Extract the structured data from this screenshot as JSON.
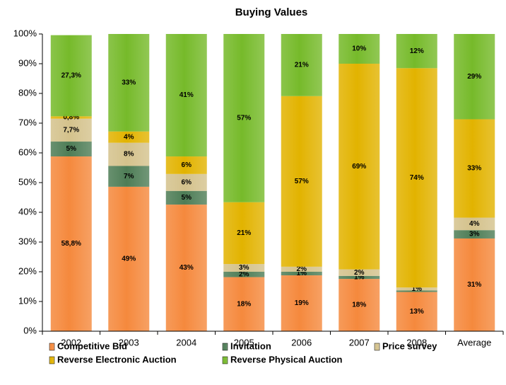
{
  "chart_data": {
    "type": "stacked_bar",
    "title": "Buying Values",
    "categories": [
      "2002",
      "2003",
      "2004",
      "2005",
      "2006",
      "2007",
      "2008",
      "Average"
    ],
    "series": [
      {
        "name": "Competitive Bid",
        "color": "#f5893d",
        "values": [
          58.8,
          48.6,
          42.6,
          18.2,
          18.8,
          17.6,
          13.2,
          31.2
        ],
        "value_labels": [
          "58,8%",
          "49%",
          "43%",
          "18%",
          "19%",
          "18%",
          "13%",
          "31%"
        ]
      },
      {
        "name": "Invitation",
        "color": "#4e7d56",
        "values": [
          5,
          7,
          4.6,
          1.8,
          1.2,
          1.0,
          0.5,
          2.8
        ],
        "value_labels": [
          "5%",
          "7%",
          "5%",
          "2%",
          "1%",
          "1%",
          null,
          "3%"
        ]
      },
      {
        "name": "Price survey",
        "color": "#d4c28c",
        "values": [
          7.7,
          7.8,
          5.7,
          2.6,
          1.7,
          2.2,
          1,
          4.2
        ],
        "value_labels": [
          "7,7%",
          "8%",
          "6%",
          "3%",
          "2%",
          "2%",
          "1%",
          "4%"
        ]
      },
      {
        "name": "Reverse Electronic Auction",
        "color": "#e2b300",
        "values": [
          0.8,
          3.8,
          5.9,
          20.8,
          57.4,
          69.2,
          73.8,
          33.1
        ],
        "value_labels": [
          "0,8%",
          "4%",
          "6%",
          "21%",
          "57%",
          "69%",
          "74%",
          "33%"
        ]
      },
      {
        "name": "Reverse Physical Auction",
        "color": "#76ba2a",
        "values": [
          27.3,
          32.8,
          41.2,
          56.6,
          20.9,
          10.0,
          11.5,
          28.7
        ],
        "value_labels": [
          "27,3%",
          "33%",
          "41%",
          "57%",
          "21%",
          "10%",
          "12%",
          "29%"
        ]
      }
    ],
    "ylim": [
      0,
      100
    ],
    "yticks": [
      {
        "value": 0,
        "label": "0%"
      },
      {
        "value": 10,
        "label": "10%"
      },
      {
        "value": 20,
        "label": "20%"
      },
      {
        "value": 30,
        "label": "30%"
      },
      {
        "value": 40,
        "label": "40%"
      },
      {
        "value": 50,
        "label": "50%"
      },
      {
        "value": 60,
        "label": "60%"
      },
      {
        "value": 70,
        "label": "70%"
      },
      {
        "value": 80,
        "label": "80%"
      },
      {
        "value": 90,
        "label": "90%"
      },
      {
        "value": 100,
        "label": "100%"
      }
    ],
    "grid": false,
    "legend": "bottom"
  }
}
